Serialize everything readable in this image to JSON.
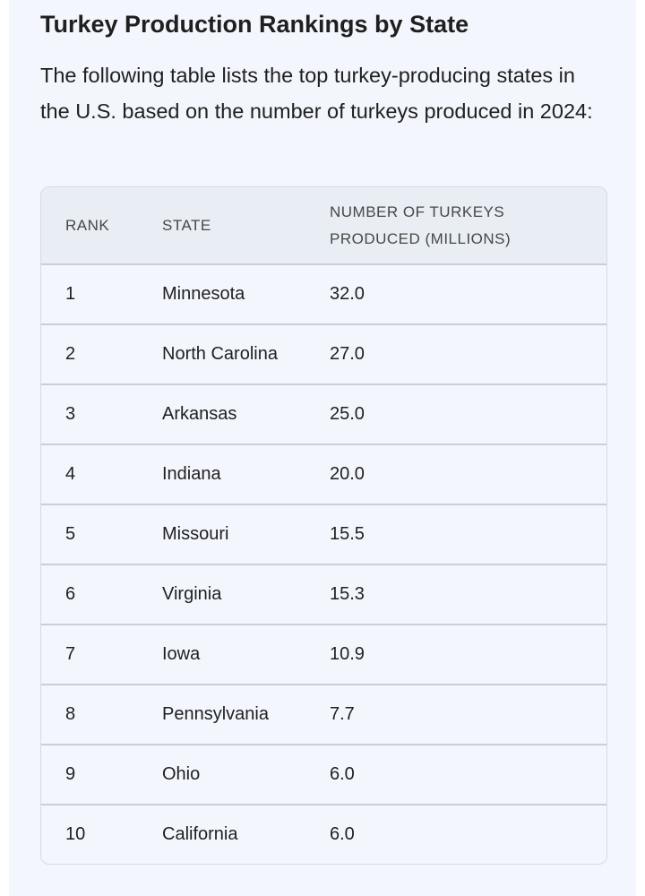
{
  "title": "Turkey Production Rankings by State",
  "intro": "The following table lists the top turkey-producing states in the U.S. based on the number of turkeys produced in 2024:",
  "table": {
    "headers": [
      "RANK",
      "STATE",
      "NUMBER OF TURKEYS PRODUCED (MILLIONS)"
    ],
    "rows": [
      [
        "1",
        "Minnesota",
        "32.0"
      ],
      [
        "2",
        "North Carolina",
        "27.0"
      ],
      [
        "3",
        "Arkansas",
        "25.0"
      ],
      [
        "4",
        "Indiana",
        "20.0"
      ],
      [
        "5",
        "Missouri",
        "15.5"
      ],
      [
        "6",
        "Virginia",
        "15.3"
      ],
      [
        "7",
        "Iowa",
        "10.9"
      ],
      [
        "8",
        "Pennsylvania",
        "7.7"
      ],
      [
        "9",
        "Ohio",
        "6.0"
      ],
      [
        "10",
        "California",
        "6.0"
      ]
    ]
  }
}
